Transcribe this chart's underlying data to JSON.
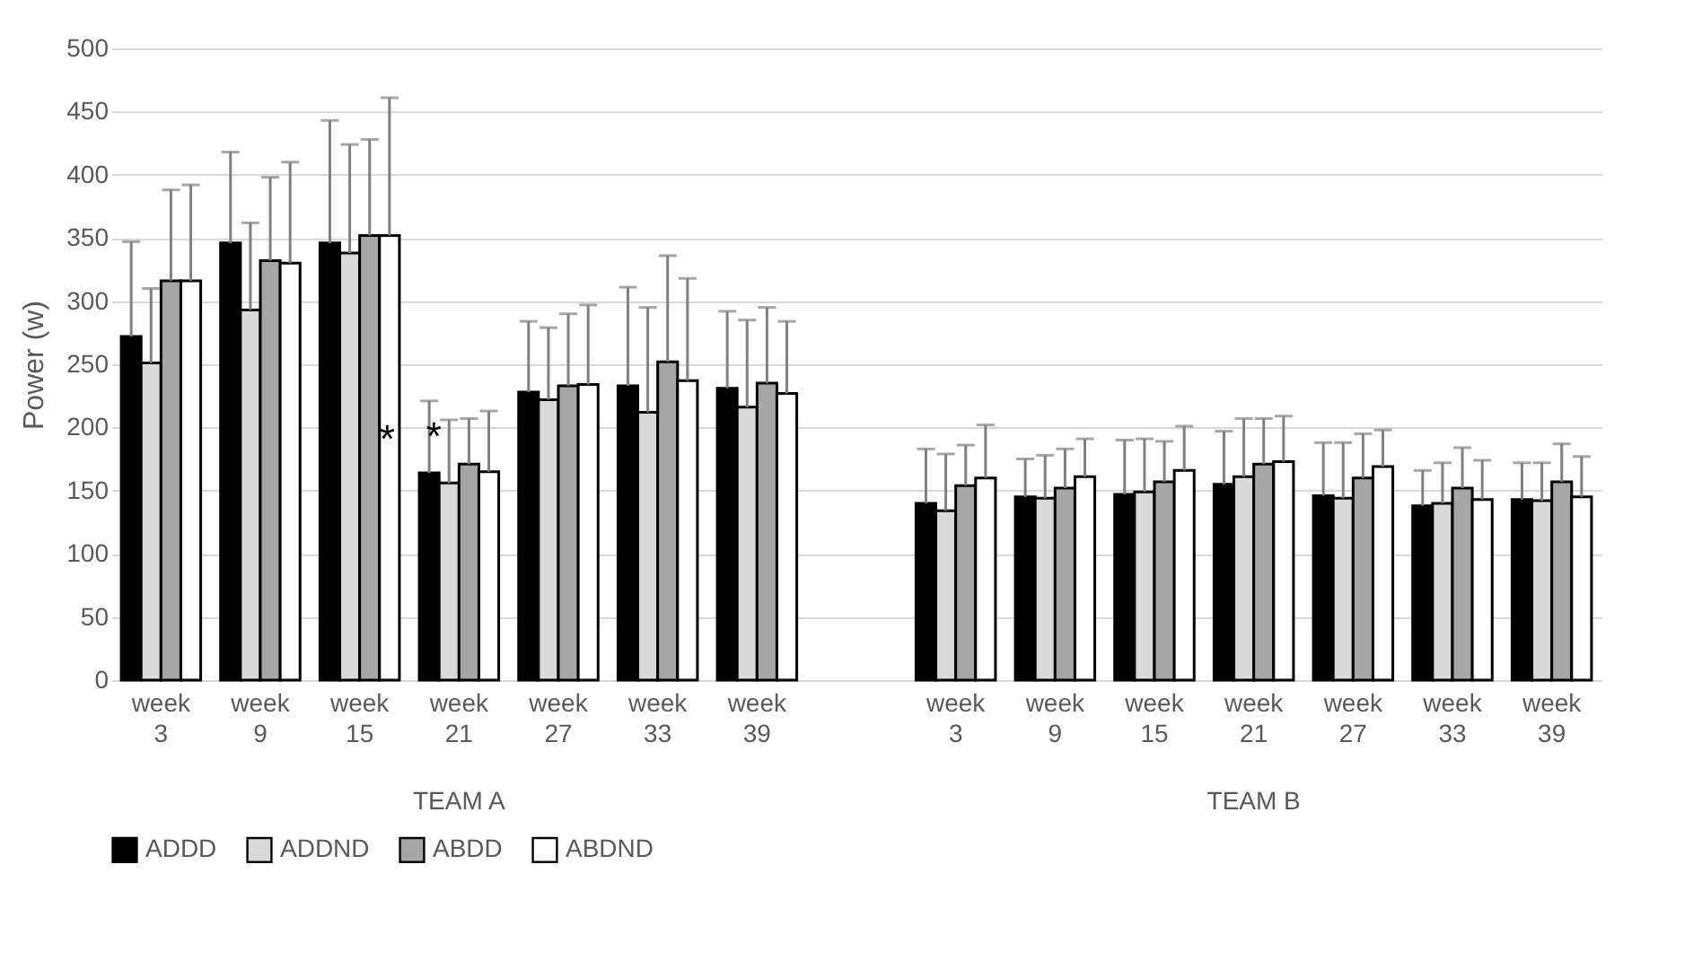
{
  "chart_data": {
    "type": "bar",
    "ylabel": "Power (w)",
    "categories": [
      "week 3",
      "week 9",
      "week 15",
      "week 21",
      "week 27",
      "week 33",
      "week 39",
      null,
      "week 3",
      "week 9",
      "week 15",
      "week 21",
      "week 27",
      "week 33",
      "week 39"
    ],
    "series": [
      {
        "name": "ADDD",
        "color": "#000000",
        "values": [
          272,
          346,
          346,
          164,
          228,
          233,
          231,
          null,
          140,
          145,
          147,
          155,
          146,
          138,
          143
        ],
        "errors": [
          [
            272,
            347
          ],
          [
            346,
            418
          ],
          [
            346,
            443
          ],
          [
            164,
            221
          ],
          [
            228,
            284
          ],
          [
            233,
            311
          ],
          [
            231,
            292
          ],
          null,
          [
            140,
            183
          ],
          [
            145,
            175
          ],
          [
            147,
            190
          ],
          [
            155,
            197
          ],
          [
            146,
            188
          ],
          [
            138,
            166
          ],
          [
            143,
            172
          ]
        ]
      },
      {
        "name": "ADDND",
        "color": "#d9d9d9",
        "values": [
          251,
          293,
          338,
          156,
          222,
          212,
          216,
          null,
          134,
          144,
          149,
          161,
          144,
          140,
          142
        ],
        "errors": [
          [
            251,
            310
          ],
          [
            293,
            362
          ],
          [
            338,
            424
          ],
          [
            156,
            206
          ],
          [
            222,
            279
          ],
          [
            212,
            295
          ],
          [
            216,
            285
          ],
          null,
          [
            134,
            179
          ],
          [
            144,
            178
          ],
          [
            149,
            191
          ],
          [
            161,
            207
          ],
          [
            144,
            188
          ],
          [
            140,
            172
          ],
          [
            142,
            172
          ]
        ]
      },
      {
        "name": "ABDD",
        "color": "#a6a6a6",
        "values": [
          316,
          332,
          352,
          171,
          233,
          252,
          235,
          null,
          154,
          152,
          157,
          171,
          160,
          152,
          157
        ],
        "errors": [
          [
            316,
            388
          ],
          [
            332,
            398
          ],
          [
            352,
            428
          ],
          [
            171,
            207
          ],
          [
            233,
            290
          ],
          [
            252,
            336
          ],
          [
            235,
            295
          ],
          null,
          [
            154,
            186
          ],
          [
            152,
            183
          ],
          [
            157,
            189
          ],
          [
            171,
            207
          ],
          [
            160,
            195
          ],
          [
            152,
            184
          ],
          [
            157,
            187
          ]
        ]
      },
      {
        "name": "ABDND",
        "color": "#ffffff",
        "values": [
          316,
          330,
          352,
          165,
          234,
          237,
          227,
          null,
          160,
          161,
          166,
          173,
          169,
          143,
          145
        ],
        "errors": [
          [
            316,
            392
          ],
          [
            330,
            410
          ],
          [
            352,
            461
          ],
          [
            165,
            213
          ],
          [
            234,
            297
          ],
          [
            237,
            318
          ],
          [
            227,
            284
          ],
          null,
          [
            160,
            202
          ],
          [
            161,
            191
          ],
          [
            166,
            201
          ],
          [
            173,
            209
          ],
          [
            169,
            198
          ],
          [
            143,
            174
          ],
          [
            145,
            177
          ]
        ]
      }
    ],
    "ylim": [
      0,
      500
    ],
    "yticks": [
      0,
      50,
      100,
      150,
      200,
      250,
      300,
      350,
      400,
      450,
      500
    ],
    "grid": "y",
    "legend": "bottom",
    "annotations": [
      "TEAM A",
      "TEAM B",
      {
        "text": "*",
        "x": "week 21",
        "y": 164
      },
      "*"
    ]
  }
}
